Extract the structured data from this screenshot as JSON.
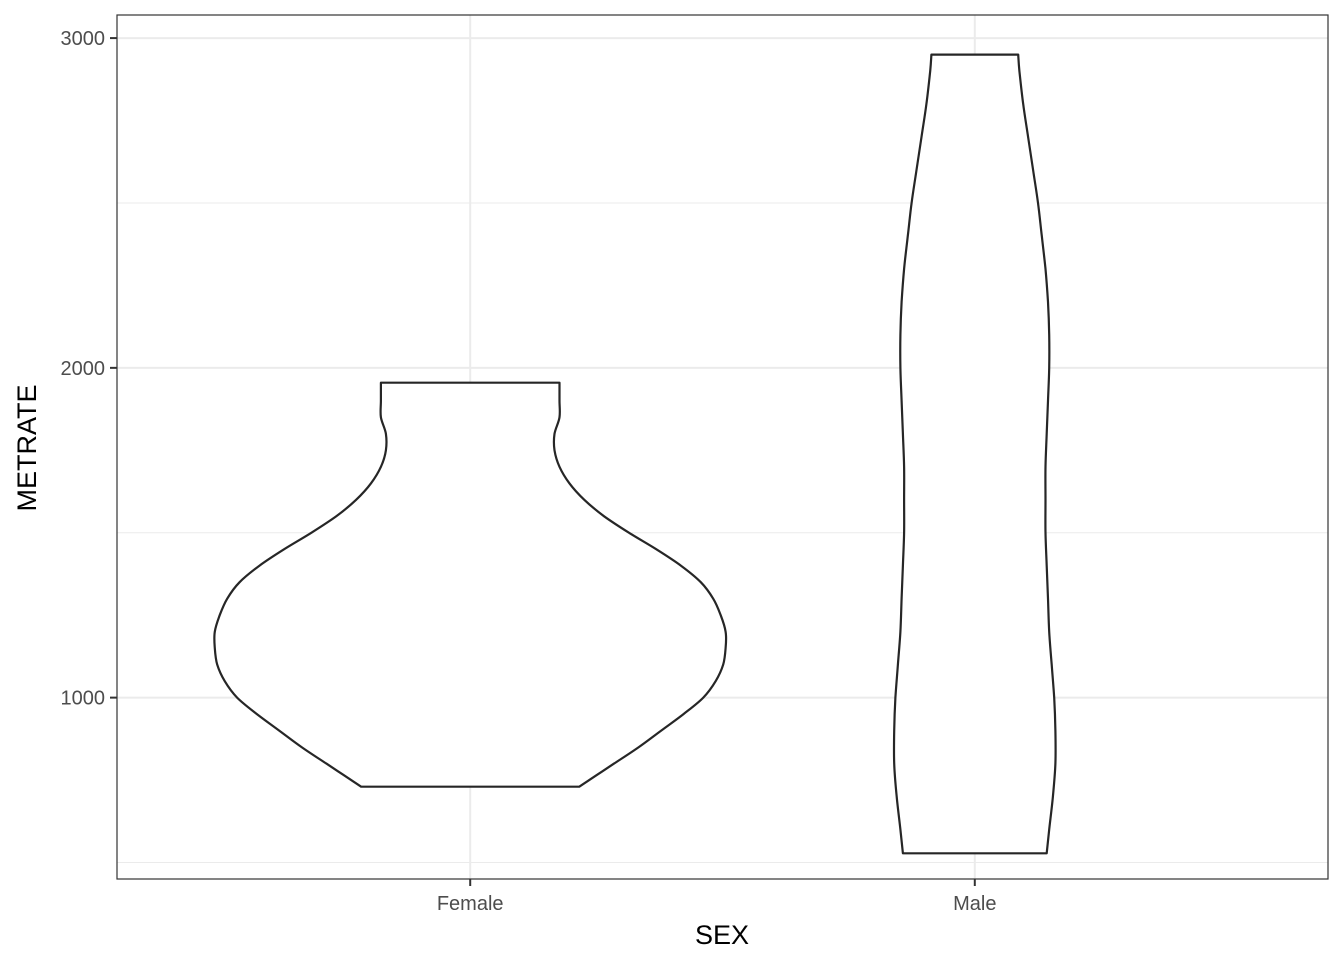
{
  "chart_data": {
    "type": "violin",
    "title": "",
    "xlabel": "SEX",
    "ylabel": "METRATE",
    "categories": [
      "Female",
      "Male"
    ],
    "ylim": [
      450,
      3070
    ],
    "y_ticks": [
      1000,
      2000,
      3000
    ],
    "y_minor_gridlines": [
      500,
      1500,
      2500
    ],
    "grid": true,
    "theme": "bw",
    "outline_color": "#262626",
    "fill_color": "#ffffff",
    "grid_color": "#ebebeb",
    "panel_border_color": "#333333",
    "series": [
      {
        "category": "Female",
        "min": 730,
        "max": 1955,
        "profile": [
          {
            "y": 730,
            "w": 0.44
          },
          {
            "y": 765,
            "w": 0.51
          },
          {
            "y": 800,
            "w": 0.58
          },
          {
            "y": 850,
            "w": 0.68
          },
          {
            "y": 900,
            "w": 0.77
          },
          {
            "y": 950,
            "w": 0.86
          },
          {
            "y": 1000,
            "w": 0.94
          },
          {
            "y": 1050,
            "w": 0.99
          },
          {
            "y": 1100,
            "w": 1.02
          },
          {
            "y": 1150,
            "w": 1.03
          },
          {
            "y": 1200,
            "w": 1.03
          },
          {
            "y": 1250,
            "w": 1.01
          },
          {
            "y": 1300,
            "w": 0.98
          },
          {
            "y": 1350,
            "w": 0.93
          },
          {
            "y": 1400,
            "w": 0.85
          },
          {
            "y": 1450,
            "w": 0.75
          },
          {
            "y": 1500,
            "w": 0.64
          },
          {
            "y": 1550,
            "w": 0.54
          },
          {
            "y": 1600,
            "w": 0.46
          },
          {
            "y": 1650,
            "w": 0.4
          },
          {
            "y": 1700,
            "w": 0.36
          },
          {
            "y": 1750,
            "w": 0.34
          },
          {
            "y": 1800,
            "w": 0.34
          },
          {
            "y": 1850,
            "w": 0.36
          },
          {
            "y": 1900,
            "w": 0.36
          },
          {
            "y": 1955,
            "w": 0.36
          }
        ]
      },
      {
        "category": "Male",
        "min": 528,
        "max": 2950,
        "profile": [
          {
            "y": 528,
            "w": 0.29
          },
          {
            "y": 600,
            "w": 0.3
          },
          {
            "y": 700,
            "w": 0.315
          },
          {
            "y": 800,
            "w": 0.325
          },
          {
            "y": 900,
            "w": 0.325
          },
          {
            "y": 1000,
            "w": 0.32
          },
          {
            "y": 1100,
            "w": 0.31
          },
          {
            "y": 1200,
            "w": 0.3
          },
          {
            "y": 1300,
            "w": 0.295
          },
          {
            "y": 1400,
            "w": 0.29
          },
          {
            "y": 1500,
            "w": 0.285
          },
          {
            "y": 1600,
            "w": 0.285
          },
          {
            "y": 1700,
            "w": 0.285
          },
          {
            "y": 1800,
            "w": 0.29
          },
          {
            "y": 1900,
            "w": 0.295
          },
          {
            "y": 2000,
            "w": 0.3
          },
          {
            "y": 2100,
            "w": 0.3
          },
          {
            "y": 2200,
            "w": 0.295
          },
          {
            "y": 2300,
            "w": 0.285
          },
          {
            "y": 2400,
            "w": 0.27
          },
          {
            "y": 2500,
            "w": 0.255
          },
          {
            "y": 2600,
            "w": 0.235
          },
          {
            "y": 2700,
            "w": 0.215
          },
          {
            "y": 2800,
            "w": 0.195
          },
          {
            "y": 2900,
            "w": 0.18
          },
          {
            "y": 2950,
            "w": 0.175
          }
        ]
      }
    ]
  }
}
